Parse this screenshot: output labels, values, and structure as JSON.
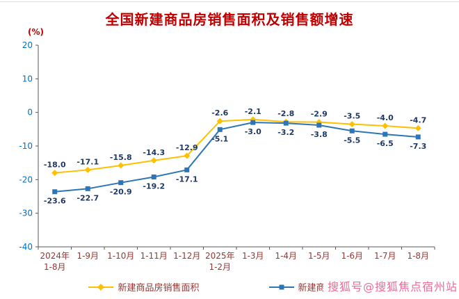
{
  "page": {
    "title": "全国新建商品房销售面积及销售额增速",
    "unit_label": "(%)",
    "watermark": "搜狐号@搜狐焦点宿州站"
  },
  "colors": {
    "title": "#c00000",
    "unit_label": "#c00000",
    "axis": "#595959",
    "y_ticks": "#0070c0",
    "x_ticks": "#953735",
    "data_labels": "#1f3864",
    "legend_text": "#953735",
    "watermark": "#ee6b95"
  },
  "chart_data": {
    "type": "line",
    "title": "全国新建商品房销售面积及销售额增速",
    "ylabel": "(%)",
    "ylim": [
      -40,
      20
    ],
    "ytick_step": 10,
    "grid": false,
    "legend_position": "bottom",
    "categories": [
      [
        "2024年",
        "1-8月"
      ],
      [
        "1-9月"
      ],
      [
        "1-10月"
      ],
      [
        "1-11月"
      ],
      [
        "1-12月"
      ],
      [
        "2025年",
        "1-2月"
      ],
      [
        "1-3月"
      ],
      [
        "1-4月"
      ],
      [
        "1-5月"
      ],
      [
        "1-6月"
      ],
      [
        "1-7月"
      ],
      [
        "1-8月"
      ]
    ],
    "series": [
      {
        "name": "新建商品房销售面积",
        "color": "#ffc000",
        "marker": "diamond",
        "label_position": "above",
        "values": [
          -18.0,
          -17.1,
          -15.8,
          -14.3,
          -12.9,
          -2.6,
          -2.1,
          -2.8,
          -2.9,
          -3.5,
          -4.0,
          -4.7
        ]
      },
      {
        "name": "新建商品房销售额",
        "color": "#2e75b6",
        "marker": "square",
        "label_position": "below",
        "values": [
          -23.6,
          -22.7,
          -20.9,
          -19.2,
          -17.1,
          -5.1,
          -3.0,
          -3.2,
          -3.8,
          -5.5,
          -6.5,
          -7.3
        ]
      }
    ]
  }
}
